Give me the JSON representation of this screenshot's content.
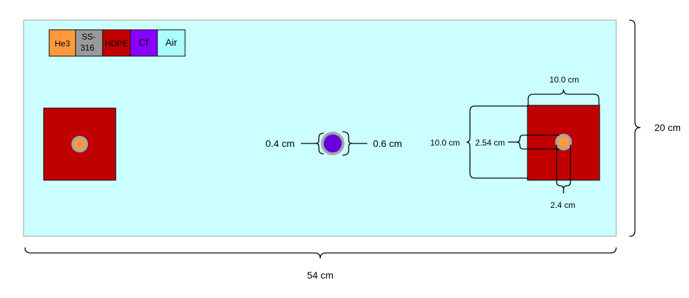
{
  "legend": [
    {
      "label": "He3",
      "color": "#ff9a3c"
    },
    {
      "label": "SS-\n316",
      "color": "#9a9a9a"
    },
    {
      "label": "HDPE",
      "color": "#c00000"
    },
    {
      "label": "Cf",
      "color": "#8800ff"
    },
    {
      "label": "Air",
      "color": "#aaffff"
    }
  ],
  "colors": {
    "air": "#ccffff",
    "hdpe": "#c00000",
    "he3": "#ff9a3c",
    "steel": "#a6a6a6",
    "cf": "#6600dd"
  },
  "dimensions": {
    "width": "54 cm",
    "height": "20 cm",
    "source_inner": "0.4 cm",
    "source_outer": "0.6 cm",
    "block_width": "10.0 cm",
    "block_height": "10.0 cm",
    "detector_depth": "2.54 cm",
    "detector_diameter": "2.4 cm"
  }
}
